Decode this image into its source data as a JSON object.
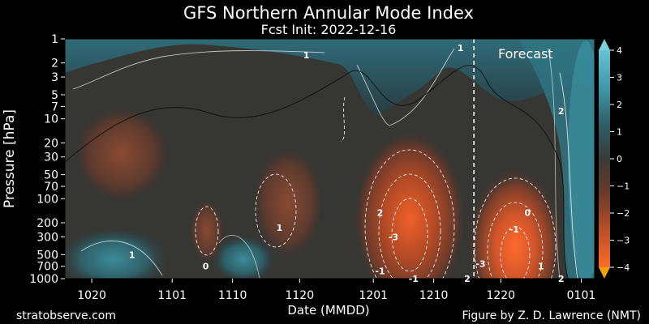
{
  "header": {
    "title": "GFS Northern Annular Mode Index",
    "subtitle": "Fcst Init: 2022-12-16"
  },
  "footer": {
    "left": "stratobserve.com",
    "right": "Figure by Z. D. Lawrence (NMT)"
  },
  "chart_data": {
    "type": "heatmap",
    "title": "GFS Northern Annular Mode Index",
    "subtitle": "Fcst Init: 2022-12-16",
    "xlabel": "Date (MMDD)",
    "ylabel": "Pressure [hPa]",
    "x_ticks": [
      "1020",
      "1101",
      "1110",
      "1120",
      "1201",
      "1210",
      "1220",
      "0101"
    ],
    "y_ticks": [
      1,
      2,
      3,
      5,
      7,
      10,
      20,
      30,
      50,
      70,
      100,
      200,
      300,
      500,
      700,
      1000
    ],
    "y_scale": "log",
    "y_inverted": true,
    "ylim": [
      1000,
      1
    ],
    "colorbar": {
      "ticks": [
        "4",
        "3",
        "2",
        "1",
        "0",
        "−1",
        "−2",
        "−3",
        "−4"
      ],
      "range": [
        -4,
        4
      ],
      "extend": "both",
      "positive_color": "#3f96a6",
      "negative_color": "#e8582a",
      "neutral_color": "#3a3a38"
    },
    "forecast_divider": {
      "date": "1216",
      "label": "Forecast"
    },
    "contour_labels": [
      {
        "text": "1",
        "date": "1026",
        "p": 500
      },
      {
        "text": "0",
        "date": "1106",
        "p": 700
      },
      {
        "text": "1",
        "date": "1117",
        "p": 230
      },
      {
        "text": "1",
        "date": "1121",
        "p": 1.6
      },
      {
        "text": "2",
        "date": "1202",
        "p": 150
      },
      {
        "text": "-3",
        "date": "1204",
        "p": 300
      },
      {
        "text": "-1",
        "date": "1202",
        "p": 800
      },
      {
        "text": "-1",
        "date": "1207",
        "p": 1000
      },
      {
        "text": "1",
        "date": "1214",
        "p": 1.3
      },
      {
        "text": "2",
        "date": "1215",
        "p": 1000
      },
      {
        "text": "-3",
        "date": "1217",
        "p": 650
      },
      {
        "text": "-1",
        "date": "1222",
        "p": 240
      },
      {
        "text": "0",
        "date": "1224",
        "p": 150
      },
      {
        "text": "1",
        "date": "1226",
        "p": 700
      },
      {
        "text": "2",
        "date": "1229",
        "p": 8
      },
      {
        "text": "2",
        "date": "1229",
        "p": 1000
      }
    ]
  }
}
